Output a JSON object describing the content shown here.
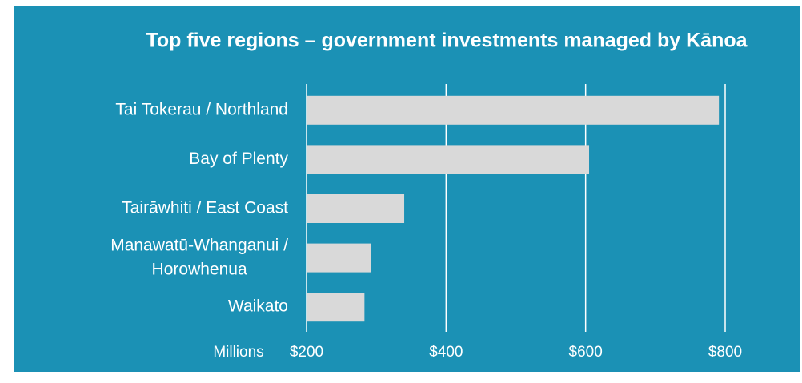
{
  "chart_data": {
    "type": "bar",
    "orientation": "horizontal",
    "title": "Top five regions – government investments managed by Kānoa",
    "x_label": "Millions",
    "categories": [
      "Tai Tokerau / Northland",
      "Bay of Plenty",
      "Tairāwhiti / East Coast",
      "Manawatū-Whanganui / Horowhenua",
      "Waikato"
    ],
    "values": [
      791,
      605,
      340,
      292,
      283
    ],
    "color": "#d9d9d9",
    "background": "#1b91b5",
    "xlim": [
      200,
      800
    ],
    "xticks": [
      {
        "value": 200,
        "label": "$200"
      },
      {
        "value": 400,
        "label": "$400"
      },
      {
        "value": 600,
        "label": "$600"
      },
      {
        "value": 800,
        "label": "$800"
      }
    ],
    "grid": true
  }
}
